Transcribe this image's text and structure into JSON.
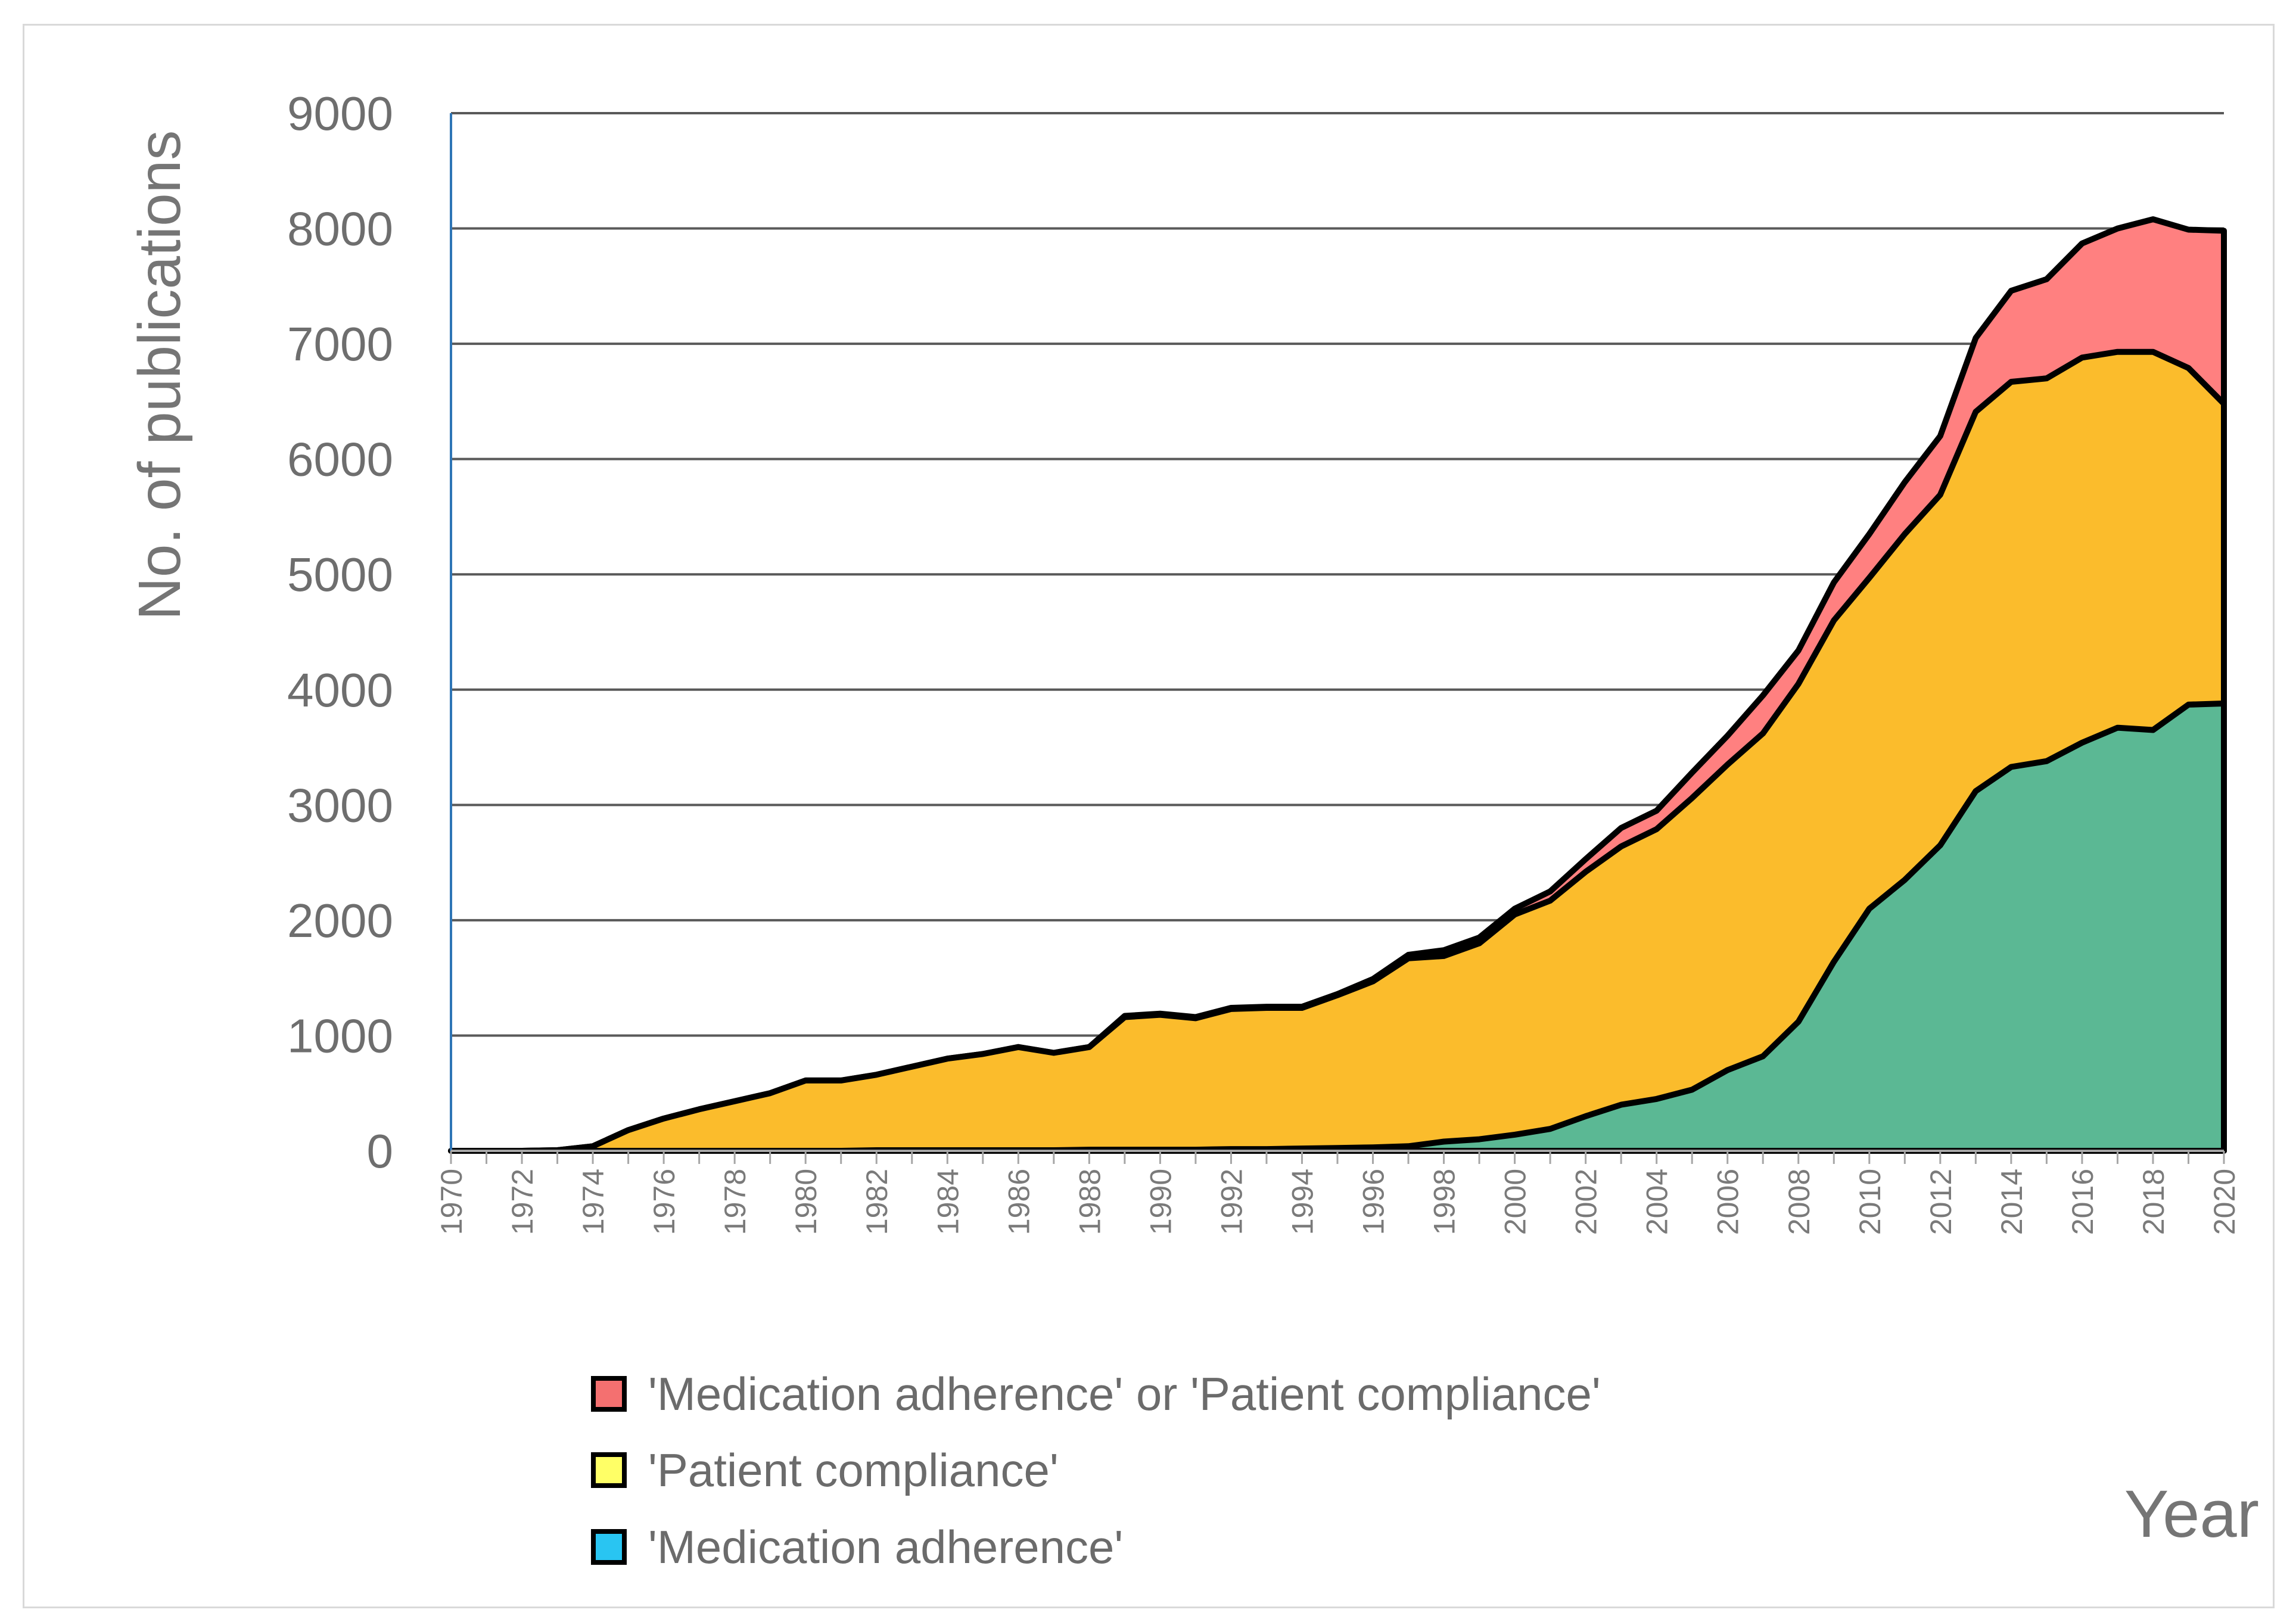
{
  "chart_data": {
    "type": "area",
    "title": "",
    "xlabel": "Year",
    "ylabel": "No. of publications",
    "xlim": [
      1970,
      2020
    ],
    "ylim": [
      0,
      9000
    ],
    "y_ticks": [
      "0",
      "1000",
      "2000",
      "3000",
      "4000",
      "5000",
      "6000",
      "7000",
      "8000",
      "9000"
    ],
    "x_ticks": [
      "1970",
      "1972",
      "1974",
      "1976",
      "1978",
      "1980",
      "1982",
      "1984",
      "1986",
      "1988",
      "1990",
      "1992",
      "1994",
      "1996",
      "1998",
      "2000",
      "2002",
      "2004",
      "2006",
      "2008",
      "2010",
      "2012",
      "2014",
      "2016",
      "2018",
      "2020"
    ],
    "grid": true,
    "legend_position": "bottom",
    "x": [
      1970,
      1971,
      1972,
      1973,
      1974,
      1975,
      1976,
      1977,
      1978,
      1979,
      1980,
      1981,
      1982,
      1983,
      1984,
      1985,
      1986,
      1987,
      1988,
      1989,
      1990,
      1991,
      1992,
      1993,
      1994,
      1995,
      1996,
      1997,
      1998,
      1999,
      2000,
      2001,
      2002,
      2003,
      2004,
      2005,
      2006,
      2007,
      2008,
      2009,
      2010,
      2011,
      2012,
      2013,
      2014,
      2015,
      2016,
      2017,
      2018,
      2019,
      2020
    ],
    "series": [
      {
        "name": "'Medication adherence' or 'Patient compliance'",
        "color": "#ff8080",
        "legend_swatch": "#f47070",
        "values": [
          0,
          0,
          0,
          5,
          40,
          180,
          280,
          360,
          430,
          500,
          610,
          610,
          660,
          730,
          800,
          840,
          900,
          850,
          900,
          1170,
          1190,
          1160,
          1240,
          1250,
          1250,
          1360,
          1490,
          1700,
          1740,
          1850,
          2100,
          2250,
          2530,
          2800,
          2950,
          3280,
          3600,
          3950,
          4340,
          4930,
          5350,
          5800,
          6200,
          7050,
          7460,
          7560,
          7870,
          8000,
          8080,
          7990,
          7980
        ]
      },
      {
        "name": "'Patient compliance'",
        "color": "#fbbc2c",
        "legend_swatch": "#ffff66",
        "values": [
          0,
          0,
          0,
          5,
          40,
          180,
          280,
          360,
          430,
          500,
          610,
          610,
          660,
          730,
          800,
          840,
          900,
          850,
          900,
          1160,
          1180,
          1150,
          1230,
          1240,
          1240,
          1350,
          1470,
          1670,
          1690,
          1800,
          2050,
          2170,
          2420,
          2640,
          2790,
          3060,
          3350,
          3620,
          4050,
          4600,
          4970,
          5350,
          5690,
          6410,
          6670,
          6700,
          6880,
          6930,
          6930,
          6790,
          6480
        ]
      },
      {
        "name": "'Medication adherence'",
        "color": "#5bb894",
        "legend_swatch": "#29c5f2",
        "values": [
          0,
          0,
          0,
          0,
          0,
          0,
          0,
          0,
          0,
          0,
          0,
          0,
          5,
          5,
          5,
          5,
          5,
          5,
          10,
          10,
          10,
          10,
          15,
          15,
          20,
          25,
          30,
          40,
          80,
          100,
          140,
          190,
          300,
          400,
          450,
          530,
          700,
          820,
          1120,
          1640,
          2100,
          2350,
          2650,
          3120,
          3330,
          3380,
          3540,
          3670,
          3650,
          3870,
          3880
        ]
      }
    ]
  }
}
